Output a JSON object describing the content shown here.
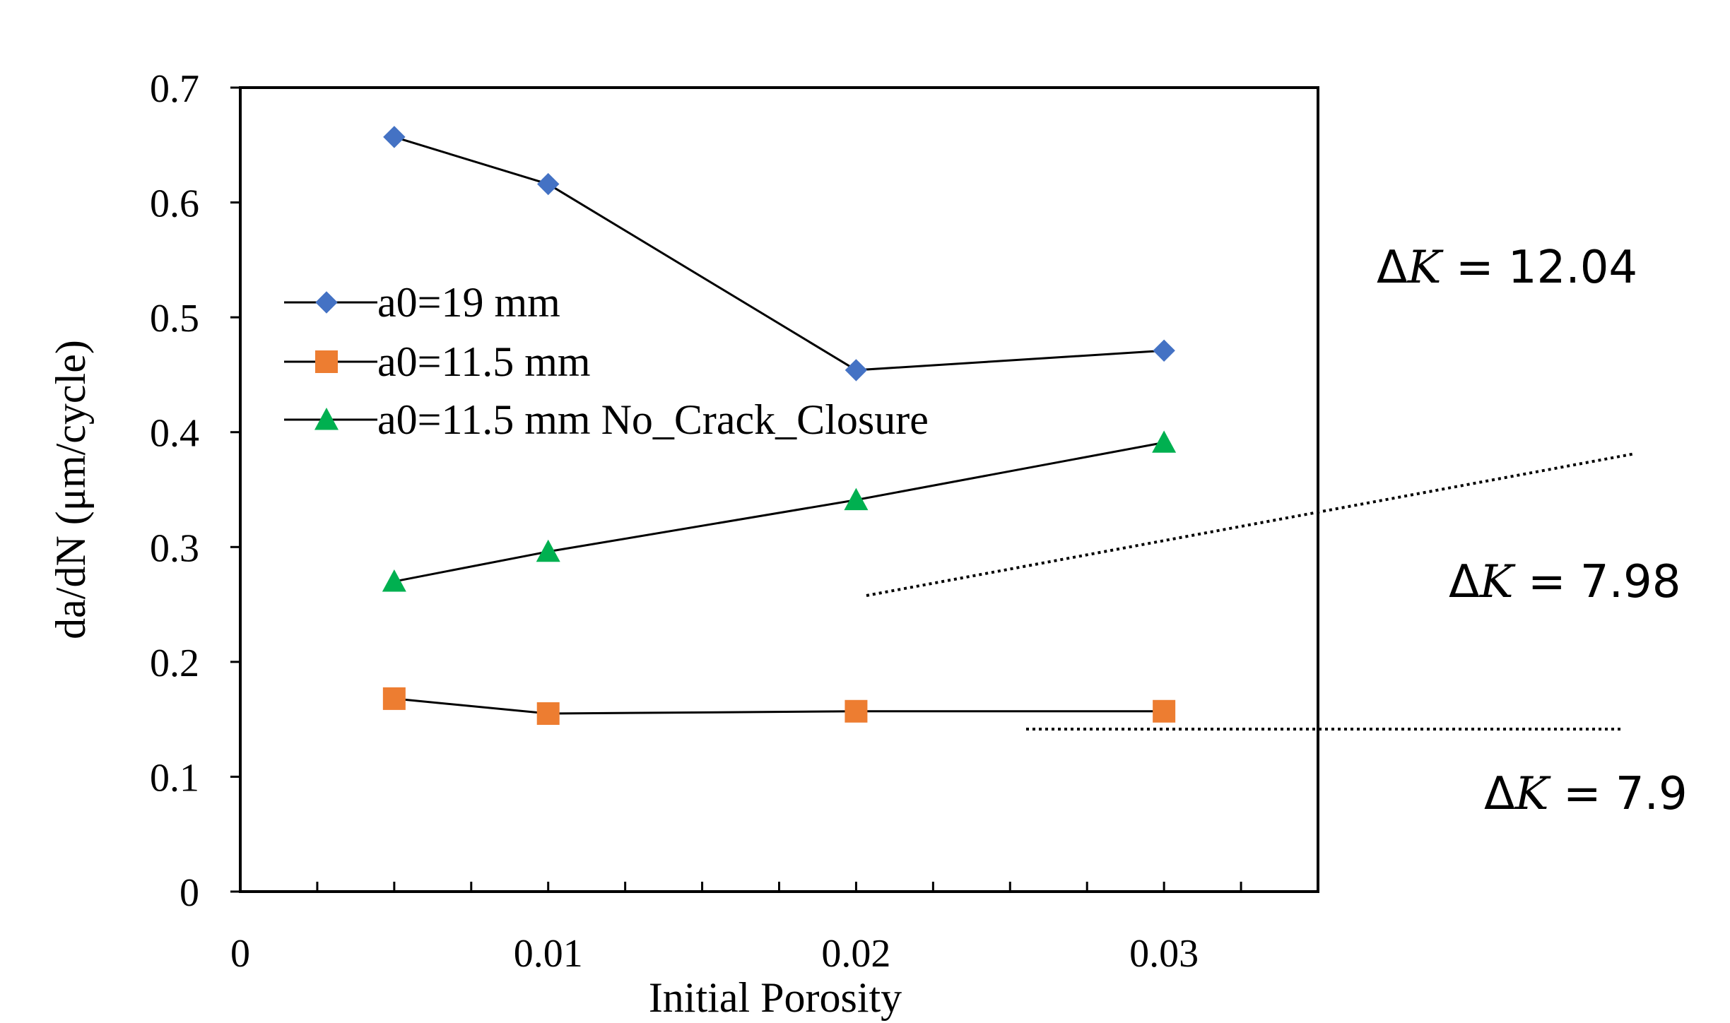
{
  "chart_data": {
    "type": "line",
    "title": "",
    "xlabel": "Initial Porosity",
    "ylabel": "da/dN (μm/cycle)",
    "xlim": [
      0,
      0.035
    ],
    "ylim": [
      0,
      0.7
    ],
    "xticks": [
      0,
      0.01,
      0.02,
      0.03
    ],
    "xtick_labels": [
      "0",
      "0.01",
      "0.02",
      "0.03"
    ],
    "yticks": [
      0,
      0.1,
      0.2,
      0.3,
      0.4,
      0.5,
      0.6,
      0.7
    ],
    "ytick_labels": [
      "0",
      "0.1",
      "0.2",
      "0.3",
      "0.4",
      "0.5",
      "0.6",
      "0.7"
    ],
    "grid": false,
    "legend_position": "middle-left",
    "x": [
      0.005,
      0.01,
      0.02,
      0.03
    ],
    "series": [
      {
        "name": "a0=19 mm",
        "marker": "diamond",
        "color": "#4472C4",
        "values": [
          0.657,
          0.616,
          0.454,
          0.471
        ]
      },
      {
        "name": "a0=11.5 mm",
        "marker": "square",
        "color": "#ED7D31",
        "values": [
          0.168,
          0.155,
          0.157,
          0.157
        ]
      },
      {
        "name": "a0=11.5 mm No_Crack_Closure",
        "marker": "triangle",
        "color": "#00B050",
        "values": [
          0.27,
          0.296,
          0.341,
          0.391
        ]
      }
    ],
    "annotations": [
      {
        "prefix": "Δ",
        "var": "K",
        "rest": " = 12.04"
      },
      {
        "prefix": "Δ",
        "var": "K",
        "rest": " = 7.98"
      },
      {
        "prefix": "Δ",
        "var": "K",
        "rest": " = 7.9"
      }
    ]
  }
}
